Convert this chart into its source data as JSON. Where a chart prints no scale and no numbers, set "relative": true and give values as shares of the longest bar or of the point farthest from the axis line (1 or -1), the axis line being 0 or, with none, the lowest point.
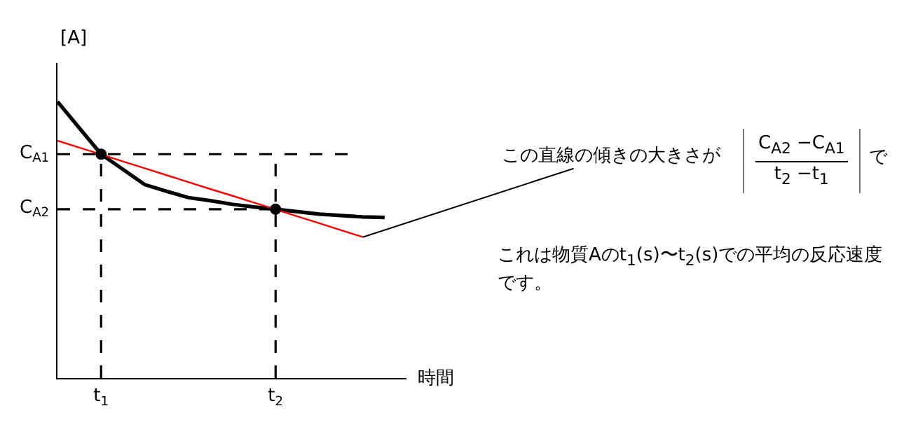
{
  "chart_data": {
    "type": "line",
    "relative": true,
    "xlabel": "時間",
    "ylabel": "[A]",
    "categories": [
      null,
      null,
      "t$_{1}$",
      null,
      null,
      null,
      null,
      null,
      null,
      null,
      "t$_{2}$",
      null,
      null,
      null,
      null,
      null
    ],
    "series": [
      {
        "color": "#000000",
        "values": [
          1,
          0.905,
          0.81,
          0.755,
          0.7,
          0.676,
          0.653,
          0.642,
          0.629,
          0.619,
          0.611,
          0.602,
          0.593,
          0.588,
          0.583,
          0.581
        ]
      },
      {
        "color": "#ff0000",
        "values": [
          0.859,
          0.834,
          0.809,
          0.784,
          0.759,
          0.734,
          0.709,
          0.684,
          0.66,
          0.635,
          0.61,
          0.585,
          0.56,
          0.535,
          0.51,
          null
        ]
      },
      {
        "type": "scatter",
        "marker": "circle",
        "color": "#000000",
        "values": [
          null,
          null,
          0.81,
          null,
          null,
          null,
          null,
          null,
          null,
          null,
          0.611,
          null,
          null,
          null,
          null,
          null
        ]
      }
    ],
    "ref_lines": [
      {
        "axis": "y",
        "value": 0.81,
        "label": "C$_{A1}$",
        "line_style": "dashed",
        "color": "#000000"
      },
      {
        "axis": "y",
        "value": 0.611,
        "label": "C$_{A2}$",
        "line_style": "dashed",
        "color": "#000000"
      },
      {
        "axis": "x",
        "value": "t$_{1}$",
        "line_style": "dashed",
        "color": "#000000"
      },
      {
        "axis": "x",
        "value": "t$_{2}$",
        "line_style": "dashed",
        "color": "#000000"
      }
    ],
    "annotations": [
      "この直線の傾きの大きさが",
      "C$_{A2}$ −C$_{A1}$",
      "t$_{2}$ −t$_{1}$",
      "で",
      "これは物質Aのt$_{1}$(s)〜t$_{2}$(s)での平均の反応速度です。"
    ]
  }
}
